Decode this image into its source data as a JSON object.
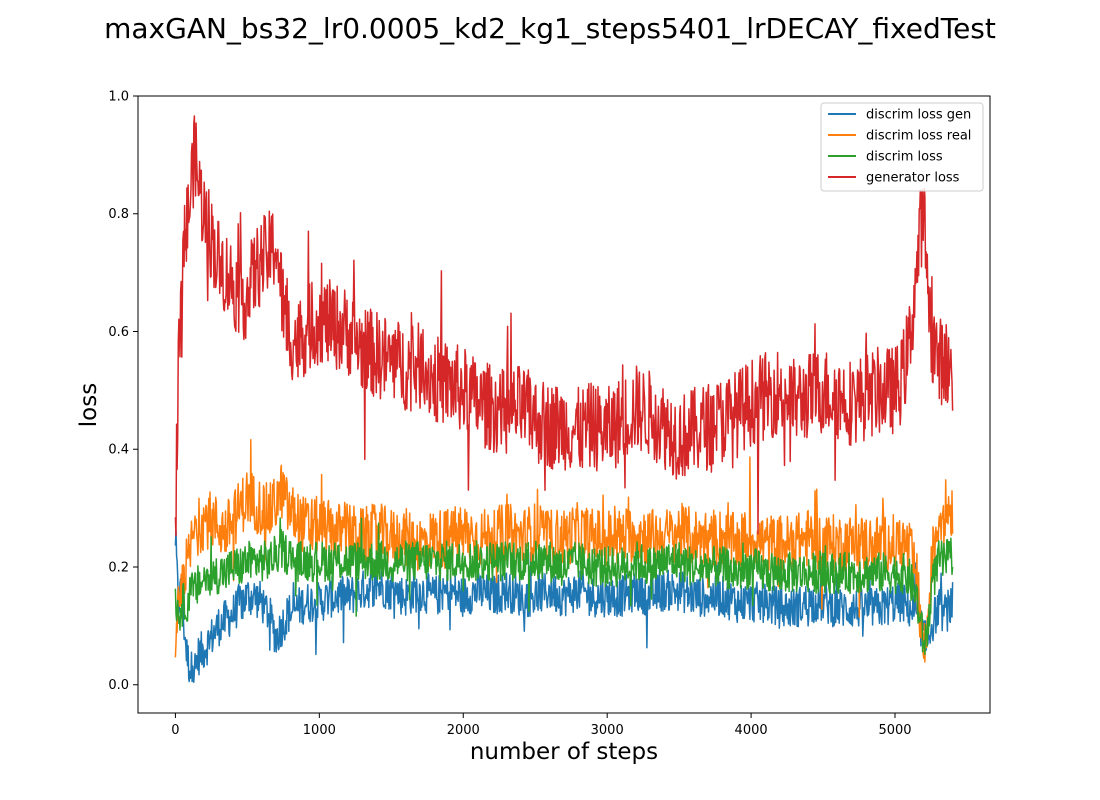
{
  "chart_data": {
    "type": "line",
    "title": "maxGAN_bs32_lr0.0005_kd2_kg1_steps5401_lrDECAY_fixedTest",
    "xlabel": "number of steps",
    "ylabel": "loss",
    "xlim": [
      -260,
      5660
    ],
    "ylim": [
      -0.048,
      1.0
    ],
    "xticks": [
      0,
      1000,
      2000,
      3000,
      4000,
      5000
    ],
    "yticks": [
      0.0,
      0.2,
      0.4,
      0.6,
      0.8,
      1.0
    ],
    "xtick_labels": [
      "0",
      "1000",
      "2000",
      "3000",
      "4000",
      "5000"
    ],
    "ytick_labels": [
      "0.0",
      "0.2",
      "0.4",
      "0.6",
      "0.8",
      "1.0"
    ],
    "grid": false,
    "legend_position": "top-right",
    "x": [
      0,
      20,
      40,
      60,
      80,
      100,
      120,
      140,
      160,
      200,
      250,
      300,
      350,
      400,
      450,
      500,
      550,
      600,
      650,
      700,
      740,
      780,
      850,
      900,
      1000,
      1100,
      1200,
      1300,
      1400,
      1500,
      1600,
      1700,
      1800,
      1900,
      2000,
      2100,
      2200,
      2300,
      2400,
      2500,
      2600,
      2700,
      2800,
      2900,
      3000,
      3100,
      3200,
      3300,
      3400,
      3500,
      3600,
      3700,
      3800,
      3900,
      4000,
      4100,
      4200,
      4300,
      4400,
      4500,
      4600,
      4700,
      4800,
      4900,
      5000,
      5050,
      5100,
      5150,
      5180,
      5200,
      5220,
      5250,
      5300,
      5350,
      5400
    ],
    "series": [
      {
        "name": "discrim loss gen",
        "color": "#1f77b4",
        "values": [
          0.25,
          0.14,
          0.16,
          0.1,
          0.05,
          0.03,
          0.02,
          0.03,
          0.05,
          0.06,
          0.08,
          0.1,
          0.11,
          0.12,
          0.14,
          0.15,
          0.15,
          0.14,
          0.12,
          0.08,
          0.1,
          0.12,
          0.13,
          0.14,
          0.14,
          0.15,
          0.15,
          0.16,
          0.17,
          0.16,
          0.15,
          0.16,
          0.15,
          0.16,
          0.15,
          0.16,
          0.15,
          0.16,
          0.15,
          0.15,
          0.16,
          0.15,
          0.16,
          0.15,
          0.15,
          0.15,
          0.16,
          0.15,
          0.16,
          0.16,
          0.15,
          0.15,
          0.15,
          0.14,
          0.14,
          0.14,
          0.13,
          0.13,
          0.14,
          0.14,
          0.13,
          0.13,
          0.13,
          0.13,
          0.14,
          0.14,
          0.13,
          0.12,
          0.1,
          0.08,
          0.07,
          0.1,
          0.13,
          0.12,
          0.14
        ]
      },
      {
        "name": "discrim loss real",
        "color": "#ff7f0e",
        "values": [
          0.02,
          0.12,
          0.15,
          0.2,
          0.2,
          0.22,
          0.25,
          0.26,
          0.27,
          0.28,
          0.28,
          0.27,
          0.26,
          0.28,
          0.3,
          0.32,
          0.31,
          0.3,
          0.29,
          0.31,
          0.33,
          0.3,
          0.28,
          0.27,
          0.27,
          0.26,
          0.26,
          0.25,
          0.26,
          0.25,
          0.25,
          0.24,
          0.25,
          0.25,
          0.26,
          0.25,
          0.25,
          0.26,
          0.25,
          0.26,
          0.25,
          0.25,
          0.26,
          0.25,
          0.25,
          0.25,
          0.26,
          0.25,
          0.25,
          0.26,
          0.25,
          0.25,
          0.25,
          0.24,
          0.25,
          0.24,
          0.24,
          0.24,
          0.25,
          0.24,
          0.24,
          0.24,
          0.24,
          0.24,
          0.24,
          0.24,
          0.23,
          0.18,
          0.1,
          0.06,
          0.08,
          0.2,
          0.28,
          0.3,
          0.3
        ]
      },
      {
        "name": "discrim loss",
        "color": "#2ca02c",
        "values": [
          0.15,
          0.12,
          0.13,
          0.14,
          0.14,
          0.15,
          0.16,
          0.16,
          0.17,
          0.18,
          0.18,
          0.19,
          0.19,
          0.2,
          0.2,
          0.21,
          0.21,
          0.21,
          0.21,
          0.22,
          0.23,
          0.22,
          0.21,
          0.21,
          0.21,
          0.21,
          0.21,
          0.21,
          0.21,
          0.21,
          0.21,
          0.21,
          0.21,
          0.21,
          0.21,
          0.21,
          0.21,
          0.21,
          0.21,
          0.21,
          0.21,
          0.2,
          0.21,
          0.2,
          0.2,
          0.2,
          0.21,
          0.2,
          0.21,
          0.21,
          0.2,
          0.2,
          0.2,
          0.19,
          0.2,
          0.19,
          0.19,
          0.19,
          0.19,
          0.19,
          0.19,
          0.19,
          0.19,
          0.19,
          0.19,
          0.19,
          0.18,
          0.15,
          0.1,
          0.07,
          0.08,
          0.16,
          0.21,
          0.21,
          0.22
        ]
      },
      {
        "name": "generator loss",
        "color": "#d62728",
        "values": [
          0.27,
          0.55,
          0.65,
          0.74,
          0.78,
          0.82,
          0.88,
          0.9,
          0.85,
          0.8,
          0.76,
          0.72,
          0.7,
          0.68,
          0.66,
          0.66,
          0.7,
          0.72,
          0.73,
          0.75,
          0.66,
          0.6,
          0.58,
          0.6,
          0.62,
          0.61,
          0.6,
          0.57,
          0.56,
          0.55,
          0.54,
          0.54,
          0.52,
          0.51,
          0.5,
          0.48,
          0.47,
          0.46,
          0.47,
          0.45,
          0.44,
          0.44,
          0.43,
          0.44,
          0.43,
          0.45,
          0.47,
          0.46,
          0.44,
          0.42,
          0.43,
          0.44,
          0.45,
          0.46,
          0.48,
          0.49,
          0.5,
          0.48,
          0.49,
          0.5,
          0.49,
          0.48,
          0.49,
          0.5,
          0.5,
          0.52,
          0.58,
          0.7,
          0.78,
          0.8,
          0.72,
          0.6,
          0.55,
          0.55,
          0.52
        ]
      }
    ]
  }
}
